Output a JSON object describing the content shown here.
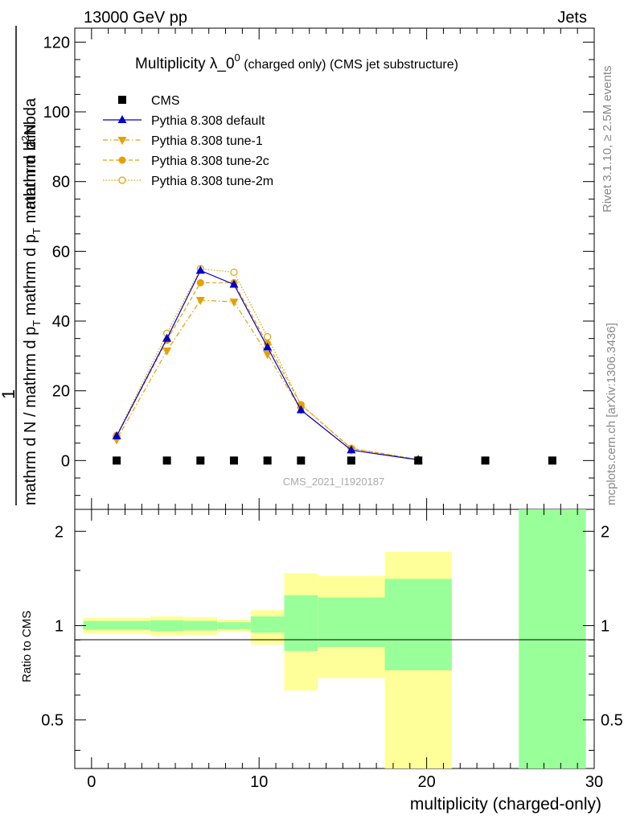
{
  "header": {
    "left": "13000 GeV pp",
    "right": "Jets"
  },
  "side": {
    "rivet": "Rivet 3.1.10, ≥ 2.5M events",
    "mcplots": "mcplots.cern.ch [arXiv:1306.3436]"
  },
  "watermark": "CMS_2021_I1920187",
  "title": {
    "main": "Multiplicity λ_0",
    "sup": "0",
    "rest": " (charged only) (CMS jet substructure)"
  },
  "ylabel_top": {
    "numerator": "mathrm d",
    "numerator_sup": "2",
    "numerator_end": "N",
    "one": "1",
    "denominator": "mathrm d N / mathrm d p",
    "denominator_sub": "T",
    "denominator_mid": " mathrm d p",
    "denominator_sub2": "T",
    "denominator_end": " mathrm d lambda"
  },
  "ylabel_bottom": "Ratio to CMS",
  "xlabel": "multiplicity (charged-only)",
  "colors": {
    "cms": "#000000",
    "default": "#0000cc",
    "tune": "#e69f00",
    "band_inner": "#99ff99",
    "band_outer": "#ffff99"
  },
  "chart_data": [
    {
      "type": "line",
      "xlim": [
        -1,
        30
      ],
      "ylim": [
        -14,
        124
      ],
      "yticks": [
        0,
        20,
        40,
        60,
        80,
        100,
        120
      ],
      "xticks": [
        0,
        10,
        20,
        30
      ],
      "series": [
        {
          "name": "CMS",
          "style": "square",
          "x": [
            1.5,
            4.5,
            6.5,
            8.5,
            10.5,
            12.5,
            15.5,
            19.5,
            23.5,
            27.5
          ],
          "y": [
            0,
            0,
            0,
            0,
            0,
            0,
            0,
            0,
            0,
            0
          ]
        },
        {
          "name": "Pythia 8.308 default",
          "style": "triangle-up",
          "x": [
            1.5,
            4.5,
            6.5,
            8.5,
            10.5,
            12.5,
            15.5,
            19.5
          ],
          "y": [
            7.0,
            35.0,
            54.5,
            50.5,
            32.5,
            14.5,
            3.0,
            0.2
          ]
        },
        {
          "name": "Pythia 8.308 tune-1",
          "style": "triangle-down",
          "x": [
            1.5,
            4.5,
            6.5,
            8.5,
            10.5,
            12.5,
            15.5,
            19.5
          ],
          "y": [
            6.0,
            31.5,
            46.0,
            45.5,
            30.5,
            14.5,
            3.0,
            0.2
          ]
        },
        {
          "name": "Pythia 8.308 tune-2c",
          "style": "circle",
          "x": [
            1.5,
            4.5,
            6.5,
            8.5,
            10.5,
            12.5,
            15.5,
            19.5
          ],
          "y": [
            7.0,
            34.5,
            51.0,
            51.0,
            33.5,
            16.0,
            3.5,
            0.3
          ]
        },
        {
          "name": "Pythia 8.308 tune-2m",
          "style": "open-circle",
          "x": [
            1.5,
            4.5,
            6.5,
            8.5,
            10.5,
            12.5,
            15.5,
            19.5
          ],
          "y": [
            7.2,
            36.5,
            55.0,
            54.0,
            35.5,
            16.0,
            3.5,
            0.3
          ]
        }
      ]
    },
    {
      "type": "area",
      "ylim": [
        0.35,
        2.35
      ],
      "yticks": [
        0.5,
        1,
        2
      ],
      "ytick_labels": [
        "0.5",
        "1",
        "2"
      ],
      "bins": [
        {
          "x0": -0.5,
          "x1": 3.5,
          "inner": [
            0.97,
            1.035
          ],
          "outer": [
            0.945,
            1.06
          ]
        },
        {
          "x0": 3.5,
          "x1": 5.5,
          "inner": [
            0.96,
            1.04
          ],
          "outer": [
            0.93,
            1.07
          ]
        },
        {
          "x0": 5.5,
          "x1": 7.5,
          "inner": [
            0.965,
            1.035
          ],
          "outer": [
            0.935,
            1.065
          ]
        },
        {
          "x0": 7.5,
          "x1": 9.5,
          "inner": [
            0.975,
            1.025
          ],
          "outer": [
            0.955,
            1.045
          ]
        },
        {
          "x0": 9.5,
          "x1": 11.5,
          "inner": [
            0.95,
            1.07
          ],
          "outer": [
            0.87,
            1.12
          ]
        },
        {
          "x0": 11.5,
          "x1": 13.5,
          "inner": [
            0.83,
            1.25
          ],
          "outer": [
            0.62,
            1.47
          ]
        },
        {
          "x0": 13.5,
          "x1": 17.5,
          "inner": [
            0.855,
            1.23
          ],
          "outer": [
            0.68,
            1.44
          ]
        },
        {
          "x0": 17.5,
          "x1": 21.5,
          "inner": [
            0.72,
            1.41
          ],
          "outer": [
            0.35,
            1.72
          ]
        },
        {
          "x0": 25.5,
          "x1": 29.5,
          "inner": [
            0.35,
            2.35
          ],
          "outer": null
        }
      ]
    }
  ]
}
